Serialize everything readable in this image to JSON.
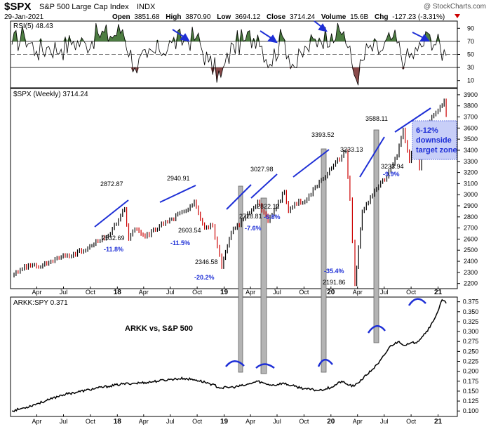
{
  "header": {
    "symbol": "$SPX",
    "name": "S&P 500 Large Cap Index",
    "exchange": "INDX",
    "watermark": "@ StockCharts.com",
    "date": "29-Jan-2021",
    "open_label": "Open",
    "open": "3851.68",
    "high_label": "High",
    "high": "3870.90",
    "low_label": "Low",
    "low": "3694.12",
    "close_label": "Close",
    "close": "3714.24",
    "volume_label": "Volume",
    "volume": "15.6B",
    "chg_label": "Chg",
    "chg": "-127.23 (-3.31%)"
  },
  "colors": {
    "up": "#000000",
    "down": "#cc0000",
    "trend": "#1e2fd6",
    "shade": "#b4b4b4",
    "rsi_over": "#4d7d42",
    "rsi_under": "#8a4a4a",
    "zone_fill": "#c8cff8"
  },
  "chart_data": [
    {
      "id": "rsi",
      "type": "line",
      "label": "RSI(5) 48.43",
      "yticks": [
        10,
        30,
        50,
        70,
        90
      ],
      "ylim": [
        0,
        100
      ],
      "upper": 70,
      "lower": 30,
      "mid": 50,
      "x": [
        "2017-01-06",
        "2017-02-17",
        "2017-03-31",
        "2017-05-12",
        "2017-06-23",
        "2017-08-04",
        "2017-09-15",
        "2017-10-27",
        "2017-12-08",
        "2018-01-19",
        "2018-03-02",
        "2018-04-13",
        "2018-05-25",
        "2018-07-06",
        "2018-08-17",
        "2018-09-28",
        "2018-11-09",
        "2018-12-21",
        "2019-02-01",
        "2019-03-15",
        "2019-04-26",
        "2019-06-07",
        "2019-07-19",
        "2019-08-30",
        "2019-10-11",
        "2019-11-22",
        "2020-01-03",
        "2020-02-14",
        "2020-03-27",
        "2020-05-08",
        "2020-06-19",
        "2020-07-31",
        "2020-09-11",
        "2020-10-23",
        "2020-12-04",
        "2021-01-29"
      ],
      "values": [
        65,
        80,
        55,
        62,
        58,
        70,
        66,
        82,
        78,
        88,
        30,
        45,
        55,
        68,
        72,
        76,
        38,
        15,
        65,
        72,
        80,
        35,
        78,
        30,
        60,
        75,
        82,
        85,
        12,
        60,
        55,
        76,
        40,
        55,
        80,
        48
      ]
    },
    {
      "id": "spx",
      "type": "line",
      "label": "$SPX (Weekly) 3714.24",
      "yticks": [
        2200,
        2300,
        2400,
        2500,
        2600,
        2700,
        2800,
        2900,
        3000,
        3100,
        3200,
        3300,
        3400,
        3500,
        3600,
        3700,
        3800,
        3900
      ],
      "ylim": [
        2160,
        3950
      ],
      "xticks": [
        "Apr",
        "Jul",
        "Oct",
        "18",
        "Apr",
        "Jul",
        "Oct",
        "19",
        "Apr",
        "Jul",
        "Oct",
        "20",
        "Apr",
        "Jul",
        "Oct",
        "21",
        "Apr"
      ],
      "x": [
        "2017-01-06",
        "2017-02-17",
        "2017-03-31",
        "2017-05-12",
        "2017-06-23",
        "2017-08-04",
        "2017-09-15",
        "2017-10-27",
        "2017-12-08",
        "2018-01-26",
        "2018-02-09",
        "2018-03-02",
        "2018-04-06",
        "2018-05-25",
        "2018-07-06",
        "2018-08-17",
        "2018-09-21",
        "2018-10-26",
        "2018-11-23",
        "2018-12-24",
        "2019-01-25",
        "2019-03-08",
        "2019-04-26",
        "2019-05-31",
        "2019-07-26",
        "2019-08-09",
        "2019-08-30",
        "2019-10-11",
        "2019-11-22",
        "2020-01-03",
        "2020-02-21",
        "2020-03-06",
        "2020-03-23",
        "2020-04-17",
        "2020-05-29",
        "2020-07-10",
        "2020-08-14",
        "2020-09-04",
        "2020-09-25",
        "2020-10-16",
        "2020-10-30",
        "2020-12-04",
        "2021-01-01",
        "2021-01-22",
        "2021-01-29"
      ],
      "values": [
        2270,
        2360,
        2350,
        2390,
        2440,
        2470,
        2500,
        2580,
        2650,
        2872.87,
        2600,
        2690,
        2620,
        2720,
        2780,
        2850,
        2940.91,
        2700,
        2720,
        2346.58,
        2660,
        2780,
        2940,
        2760,
        3027.98,
        2850,
        2920,
        2960,
        3120,
        3240,
        3393.52,
        2960,
        2191.86,
        2850,
        3040,
        3160,
        3350,
        3588.11,
        3300,
        3480,
        3233.94,
        3660,
        3760,
        3850,
        3714.24
      ],
      "highlights": [
        {
          "label": "2872.87"
        },
        {
          "label": "2532.69"
        },
        {
          "label": "-11.8%"
        },
        {
          "label": "2940.91"
        },
        {
          "label": "2603.54"
        },
        {
          "label": "-11.5%"
        },
        {
          "label": "2346.58"
        },
        {
          "label": "-20.2%"
        },
        {
          "label": "3027.98"
        },
        {
          "label": "2728.81"
        },
        {
          "label": "2822.12"
        },
        {
          "label": "-7.6%"
        },
        {
          "label": "-6.8%"
        },
        {
          "label": "3393.52"
        },
        {
          "label": "2191.86"
        },
        {
          "label": "-35.4%"
        },
        {
          "label": "3588.11"
        },
        {
          "label": "3233.13"
        },
        {
          "label": "3233.94"
        },
        {
          "label": "-9.9%"
        }
      ],
      "zone_lines": [
        "6-12%",
        "downside",
        "target zone"
      ]
    },
    {
      "id": "ratio",
      "type": "line",
      "label": "ARKK:SPY 0.371",
      "annotation": "ARKK vs, S&P 500",
      "yticks": [
        0.1,
        0.125,
        0.15,
        0.175,
        0.2,
        0.225,
        0.25,
        0.275,
        0.3,
        0.325,
        0.35,
        0.375
      ],
      "ylim": [
        0.088,
        0.385
      ],
      "xticks": [
        "Apr",
        "Jul",
        "Oct",
        "18",
        "Apr",
        "Jul",
        "Oct",
        "19",
        "Apr",
        "Jul",
        "Oct",
        "20",
        "Apr",
        "Jul",
        "Oct",
        "21",
        "Apr"
      ],
      "x": [
        "2017-01-06",
        "2017-02-17",
        "2017-03-31",
        "2017-05-12",
        "2017-06-23",
        "2017-08-04",
        "2017-09-15",
        "2017-10-27",
        "2017-12-08",
        "2018-01-19",
        "2018-03-02",
        "2018-04-13",
        "2018-05-25",
        "2018-07-06",
        "2018-08-17",
        "2018-09-28",
        "2018-11-09",
        "2018-12-21",
        "2019-02-01",
        "2019-03-15",
        "2019-04-26",
        "2019-05-24",
        "2019-06-21",
        "2019-07-19",
        "2019-08-30",
        "2019-10-11",
        "2019-11-22",
        "2020-01-03",
        "2020-02-07",
        "2020-02-21",
        "2020-03-20",
        "2020-05-01",
        "2020-06-12",
        "2020-07-24",
        "2020-08-21",
        "2020-09-11",
        "2020-10-23",
        "2020-12-04",
        "2020-12-31",
        "2021-01-15",
        "2021-01-29"
      ],
      "values": [
        0.1,
        0.108,
        0.118,
        0.128,
        0.14,
        0.146,
        0.152,
        0.158,
        0.163,
        0.168,
        0.17,
        0.172,
        0.176,
        0.18,
        0.182,
        0.178,
        0.17,
        0.158,
        0.16,
        0.165,
        0.175,
        0.168,
        0.165,
        0.17,
        0.162,
        0.155,
        0.152,
        0.16,
        0.175,
        0.168,
        0.162,
        0.19,
        0.22,
        0.265,
        0.275,
        0.265,
        0.275,
        0.31,
        0.35,
        0.38,
        0.371
      ]
    }
  ]
}
